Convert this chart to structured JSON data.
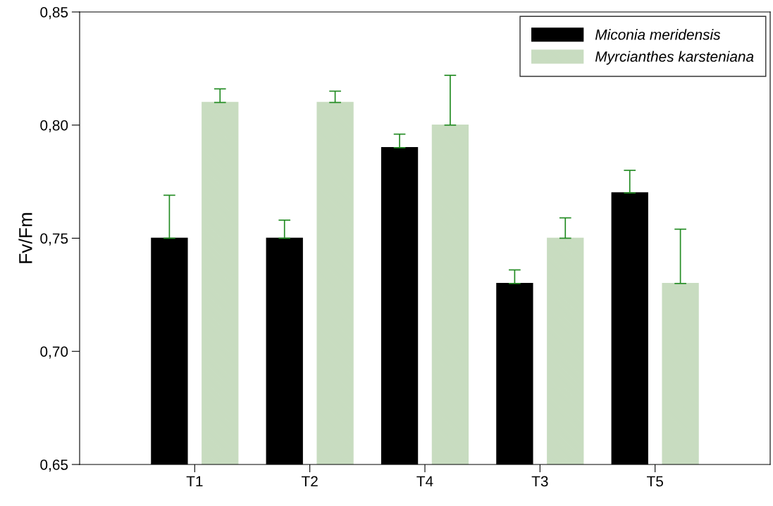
{
  "chart_data": {
    "type": "bar",
    "ylabel": "Fv/Fm",
    "categories": [
      "T1",
      "T2",
      "T4",
      "T3",
      "T5"
    ],
    "series": [
      {
        "name": "Miconia meridensis",
        "color": "#000000",
        "values": [
          0.75,
          0.75,
          0.79,
          0.73,
          0.77
        ],
        "errors": [
          [
            0.75,
            0.769
          ],
          [
            0.75,
            0.758
          ],
          [
            0.79,
            0.796
          ],
          [
            0.73,
            0.736
          ],
          [
            0.77,
            0.78
          ]
        ]
      },
      {
        "name": "Myrcianthes karsteniana",
        "color": "#c8dcc0",
        "values": [
          0.81,
          0.81,
          0.8,
          0.75,
          0.73
        ],
        "errors": [
          [
            0.81,
            0.816
          ],
          [
            0.81,
            0.815
          ],
          [
            0.8,
            0.822
          ],
          [
            0.75,
            0.759
          ],
          [
            0.73,
            0.754
          ]
        ]
      }
    ],
    "ylim": [
      0.65,
      0.85
    ],
    "yticks": [
      {
        "value": 0.65,
        "label": "0,65"
      },
      {
        "value": 0.7,
        "label": "0,70"
      },
      {
        "value": 0.75,
        "label": "0,75"
      },
      {
        "value": 0.8,
        "label": "0,80"
      },
      {
        "value": 0.85,
        "label": "0,85"
      }
    ],
    "grid": false,
    "legend": "top right"
  }
}
